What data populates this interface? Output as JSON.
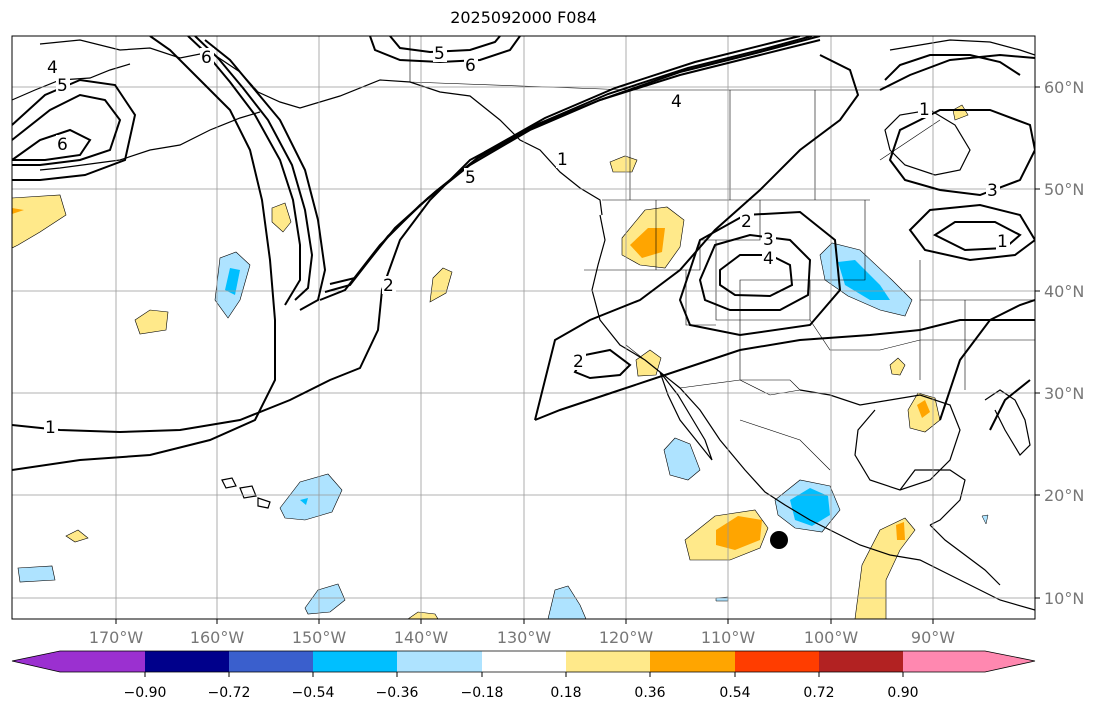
{
  "title": "2025092000 F084",
  "lat_labels": [
    "60°N",
    "50°N",
    "40°N",
    "30°N",
    "20°N",
    "10°N"
  ],
  "lon_labels": [
    "170°W",
    "160°W",
    "150°W",
    "140°W",
    "130°W",
    "120°W",
    "110°W",
    "100°W",
    "90°W"
  ],
  "colorbar": {
    "tick_labels": [
      "−0.90",
      "−0.72",
      "−0.54",
      "−0.36",
      "−0.18",
      "0.18",
      "0.36",
      "0.54",
      "0.72",
      "0.90"
    ],
    "colors": [
      "#9b30d0",
      "#00008b",
      "#3a5fcd",
      "#00bfff",
      "#aee3ff",
      "#ffffff",
      "#ffe98a",
      "#ffa500",
      "#ff3d00",
      "#b22222",
      "#ff88b0"
    ]
  },
  "contour_labels": [
    "4",
    "5",
    "6",
    "6",
    "5",
    "6",
    "4",
    "1",
    "1",
    "1",
    "2",
    "3",
    "4",
    "2",
    "2",
    "5",
    "3",
    "1"
  ],
  "colors": {
    "land": "#ffffff",
    "ocean": "#ffffff",
    "grid": "#999999",
    "coast": "#000000",
    "pos_light": "#ffe98a",
    "pos_mid": "#ffa500",
    "neg_light": "#aee3ff",
    "neg_mid": "#00bfff"
  },
  "marker": "storm-center-dot"
}
